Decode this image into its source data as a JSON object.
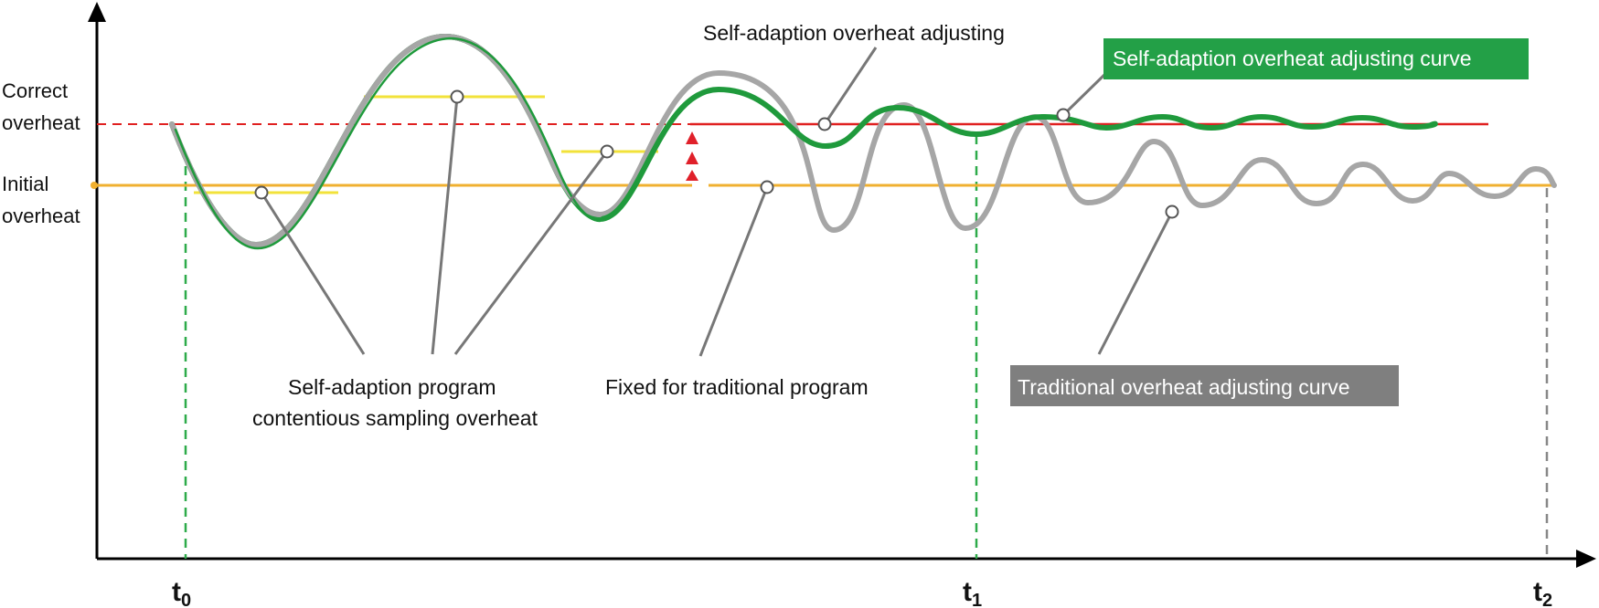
{
  "axes": {
    "y_labels": {
      "correct": [
        "Correct",
        "overheat"
      ],
      "initial": [
        "Initial",
        "overheat"
      ]
    },
    "x_ticks": {
      "t0": {
        "base": "t",
        "sub": "0"
      },
      "t1": {
        "base": "t",
        "sub": "1"
      },
      "t2": {
        "base": "t",
        "sub": "2"
      }
    }
  },
  "annotations": {
    "self_adaption_adjusting": "Self-adaption overheat adjusting",
    "sampling": [
      "Self-adaption program",
      "contentious sampling overheat"
    ],
    "fixed_traditional": "Fixed for traditional program"
  },
  "legend": {
    "self_adaption_curve": "Self-adaption overheat adjusting curve",
    "traditional_curve": "Traditional overheat adjusting curve"
  },
  "colors": {
    "axis": "#000000",
    "green_curve": "#1f9a3c",
    "gray_curve": "#a6a6a6",
    "correct_line": "#e02020",
    "initial_line": "#f0b030",
    "sample_line": "#f2e23a",
    "arrow": "#e0202a",
    "guide_green": "#2eab4a",
    "guide_gray": "#888888",
    "leader": "#777777",
    "legend_green_bg": "#23a047",
    "legend_gray_bg": "#7f7f7f"
  }
}
